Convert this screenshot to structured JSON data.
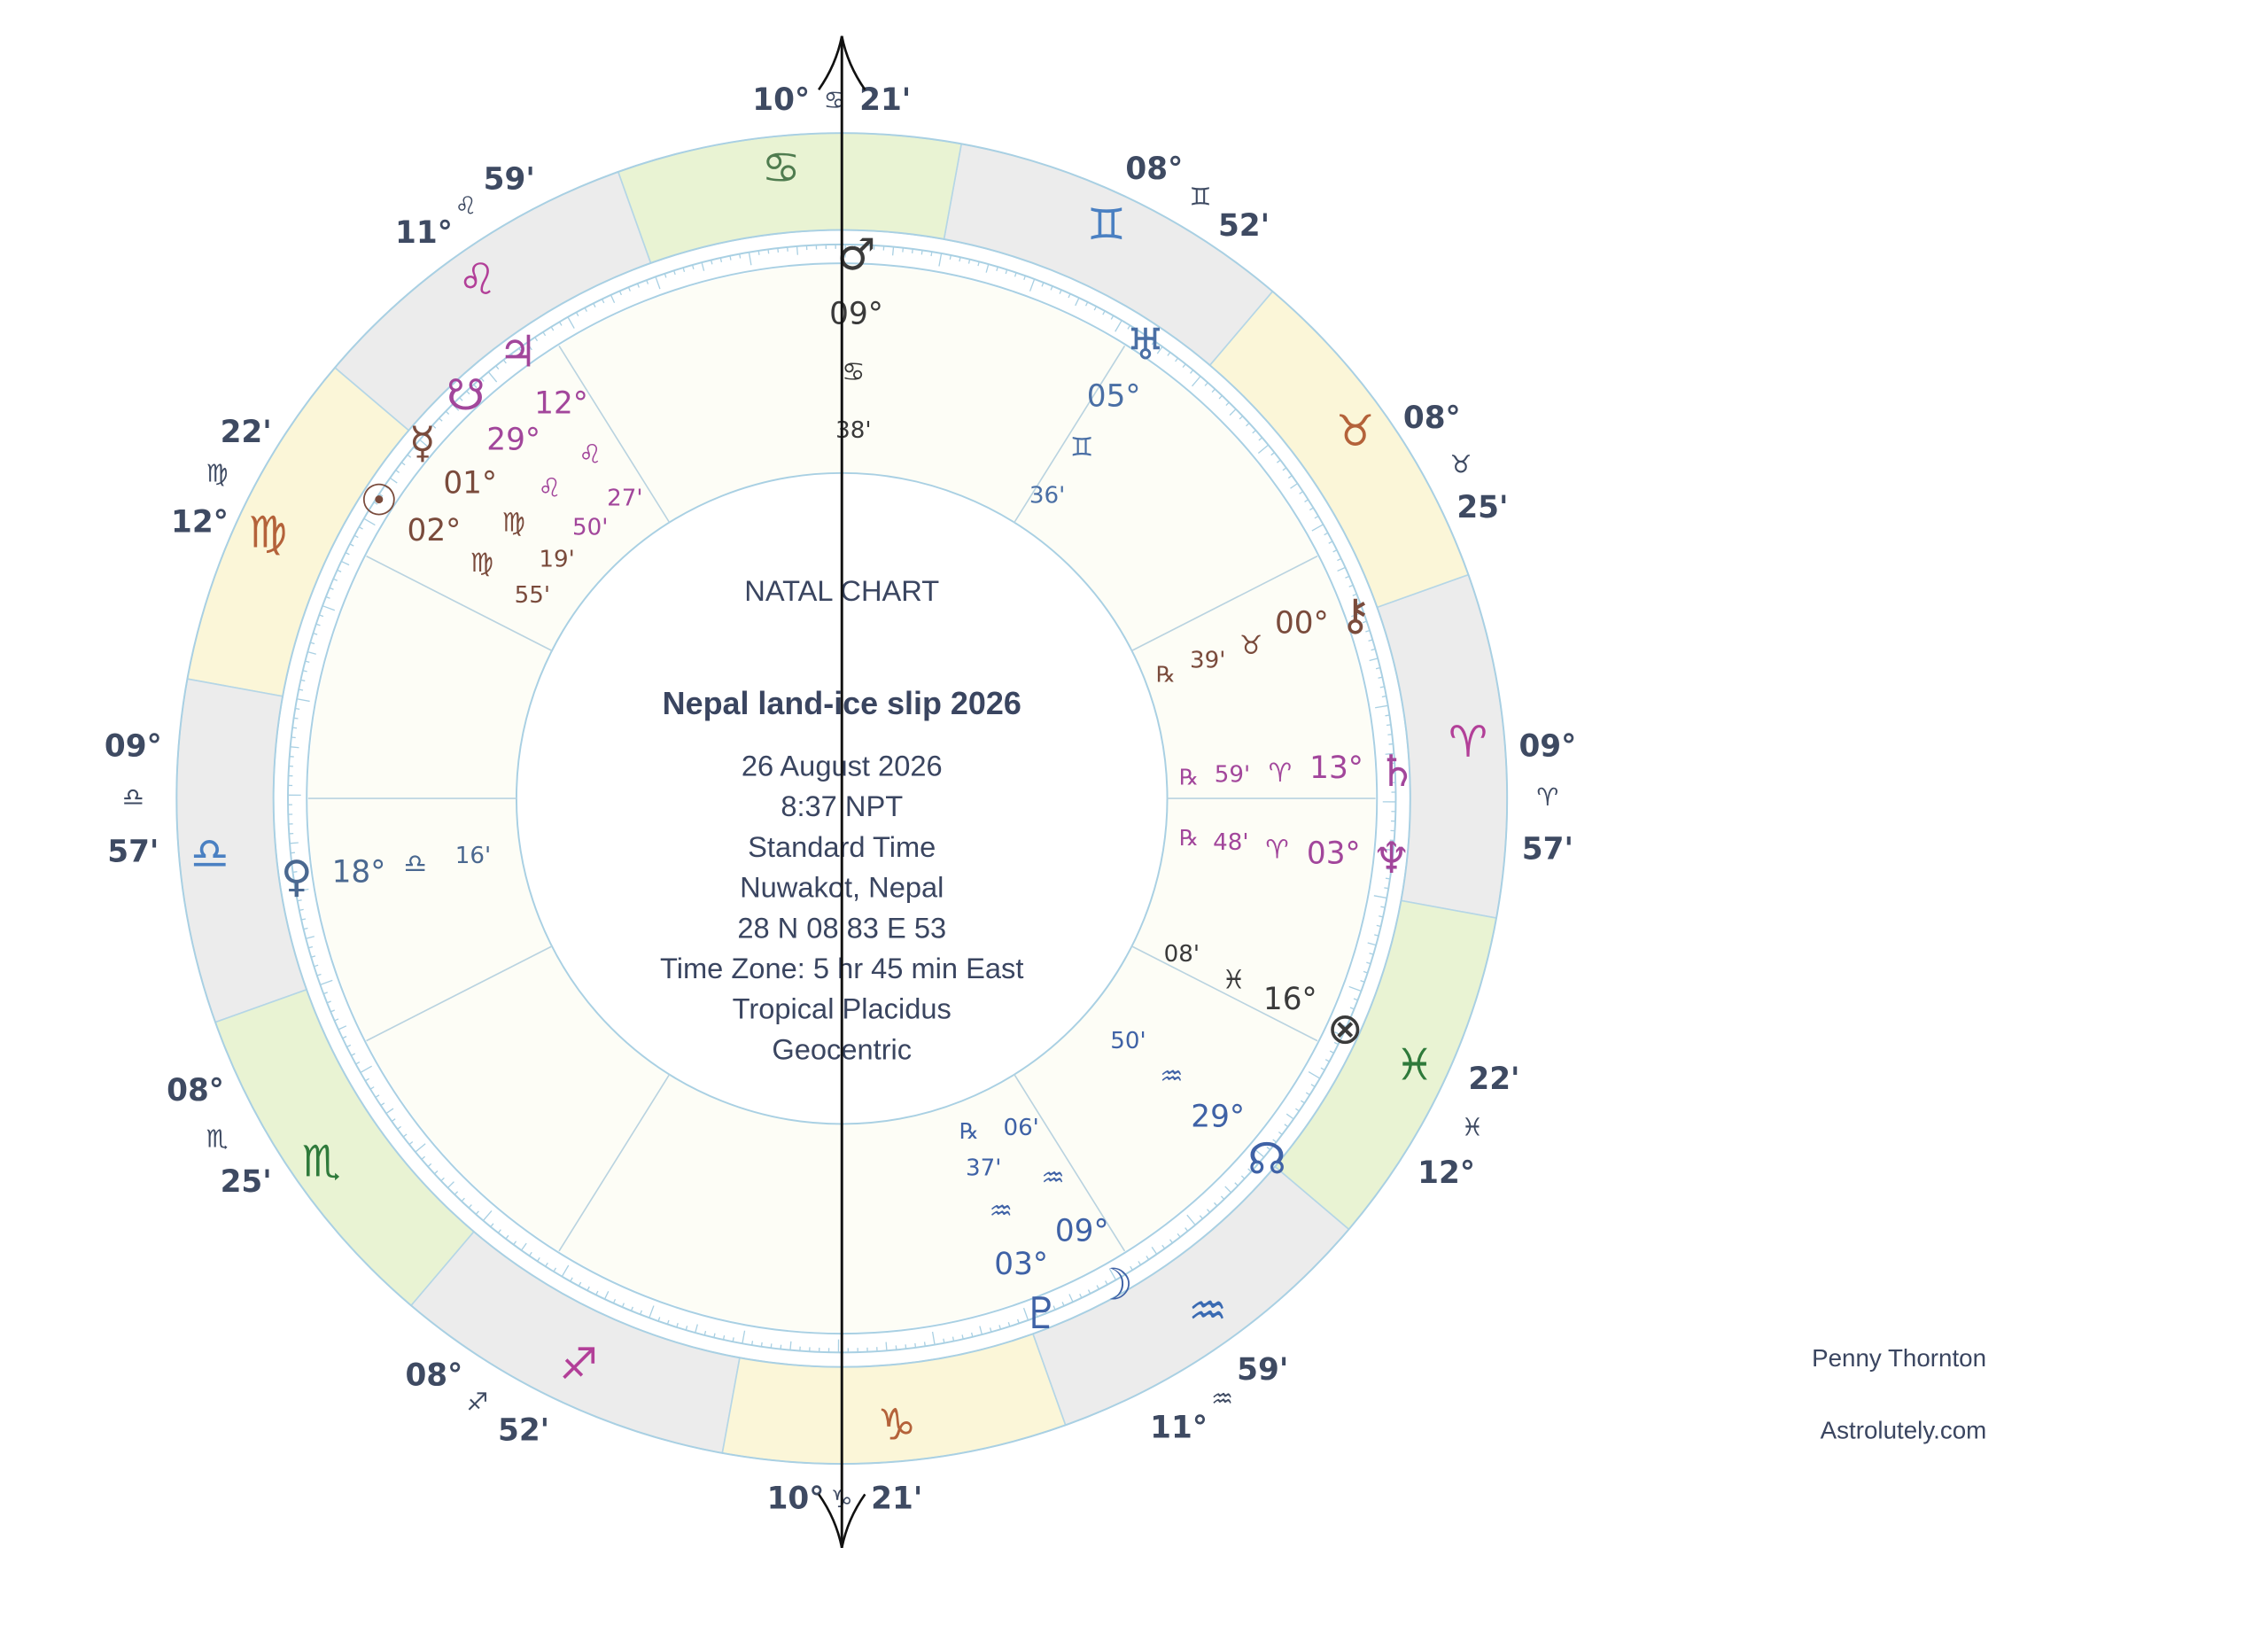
{
  "header": {
    "chart_type": "NATAL CHART",
    "chart_name": "Nepal land-ice slip 2026",
    "details": [
      "26 August 2026",
      "8:37  NPT",
      "Standard Time",
      "Nuwakot, Nepal",
      "28 N 08    83 E 53",
      "Time Zone: 5 hr 45 min East",
      "Tropical Placidus",
      "Geocentric"
    ]
  },
  "cusps": [
    {
      "degree": "10°",
      "sign": "♋",
      "minutes": "21'"
    },
    {
      "degree": "08°",
      "sign": "♊",
      "minutes": "52'"
    },
    {
      "degree": "08°",
      "sign": "♉",
      "minutes": "25'"
    },
    {
      "degree": "09°",
      "sign": "♈",
      "minutes": "57'"
    },
    {
      "degree": "12°",
      "sign": "♓",
      "minutes": "22'"
    },
    {
      "degree": "11°",
      "sign": "♒",
      "minutes": "59'"
    },
    {
      "degree": "10°",
      "sign": "♑",
      "minutes": "21'"
    },
    {
      "degree": "08°",
      "sign": "♐",
      "minutes": "52'"
    },
    {
      "degree": "08°",
      "sign": "♏",
      "minutes": "25'"
    },
    {
      "degree": "09°",
      "sign": "♎",
      "minutes": "57'"
    },
    {
      "degree": "12°",
      "sign": "♍",
      "minutes": "22'"
    },
    {
      "degree": "11°",
      "sign": "♌",
      "minutes": "59'"
    }
  ],
  "band_signs": [
    "♈",
    "♉",
    "♊",
    "♋",
    "♌",
    "♍",
    "♎",
    "♏",
    "♐",
    "♑",
    "♒",
    "♓"
  ],
  "planets": [
    {
      "glyph": "♂",
      "degree": "09°",
      "sign": "♋",
      "minutes": "38'"
    },
    {
      "glyph": "♅",
      "degree": "05°",
      "sign": "♊",
      "minutes": "36'"
    },
    {
      "glyph": "♃",
      "degree": "12°",
      "sign": "♌",
      "minutes": "27'"
    },
    {
      "glyph": "☋",
      "degree": "29°",
      "sign": "♌",
      "minutes": "50'"
    },
    {
      "glyph": "☿",
      "degree": "01°",
      "sign": "♍",
      "minutes": "19'"
    },
    {
      "glyph": "☉",
      "degree": "02°",
      "sign": "♍",
      "minutes": "55'"
    },
    {
      "glyph": "♀",
      "degree": "18°",
      "sign": "♎",
      "minutes": "16'"
    },
    {
      "glyph": "⚷",
      "degree": "00°",
      "sign": "♉",
      "minutes": "39'",
      "retrograde": "℞"
    },
    {
      "glyph": "♄",
      "degree": "13°",
      "sign": "♈",
      "minutes": "59'",
      "retrograde": "℞"
    },
    {
      "glyph": "♆",
      "degree": "03°",
      "sign": "♈",
      "minutes": "48'",
      "retrograde": "℞"
    },
    {
      "glyph": "⊗",
      "degree": "16°",
      "sign": "♓",
      "minutes": "08'"
    },
    {
      "glyph": "☊",
      "degree": "29°",
      "sign": "♒",
      "minutes": "50'"
    },
    {
      "glyph": "☽",
      "degree": "09°",
      "sign": "♒",
      "minutes": "06'"
    },
    {
      "glyph": "♇",
      "degree": "03°",
      "sign": "♒",
      "minutes": "37'",
      "retrograde": "℞"
    }
  ],
  "footer": {
    "author": "Penny Thornton",
    "website": "Astrolutely.com"
  }
}
